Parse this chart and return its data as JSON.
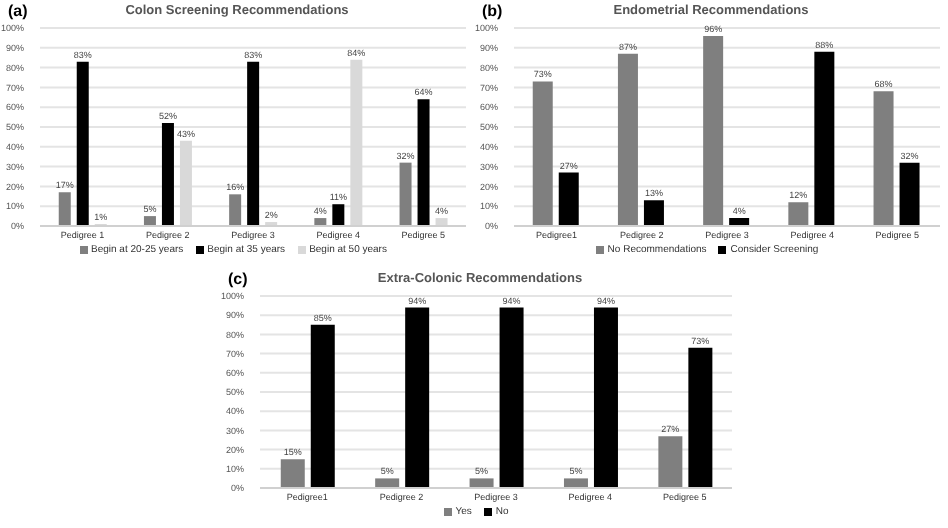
{
  "chart_data": [
    {
      "type": "bar",
      "title": "Colon Screening Recommendations",
      "annotations": [
        "(a)"
      ],
      "categories": [
        "Pedigree 1",
        "Pedigree 2",
        "Pedigree 3",
        "Pedigree 4",
        "Pedigree 5"
      ],
      "series": [
        {
          "name": "Begin at 20-25 years",
          "color": "#7f7f7f",
          "values": [
            17,
            5,
            16,
            4,
            32
          ],
          "value_labels": [
            "17%",
            "5%",
            "16%",
            "4%",
            "32%"
          ]
        },
        {
          "name": "Begin at 35 years",
          "color": "#000000",
          "values": [
            83,
            52,
            83,
            11,
            64
          ],
          "value_labels": [
            "83%",
            "52%",
            "83%",
            "11%",
            "64%"
          ]
        },
        {
          "name": "Begin at 50 years",
          "color": "#d9d9d9",
          "values": [
            1,
            43,
            2,
            84,
            4
          ],
          "value_labels": [
            "1%",
            "43%",
            "2%",
            "84%",
            "4%"
          ]
        }
      ],
      "ylim": [
        0,
        100
      ],
      "yticks": [
        {
          "value": 0,
          "label": "0%"
        },
        {
          "value": 10,
          "label": "10%"
        },
        {
          "value": 20,
          "label": "20%"
        },
        {
          "value": 30,
          "label": "30%"
        },
        {
          "value": 40,
          "label": "40%"
        },
        {
          "value": 50,
          "label": "50%"
        },
        {
          "value": 60,
          "label": "60%"
        },
        {
          "value": 70,
          "label": "70%"
        },
        {
          "value": 80,
          "label": "80%"
        },
        {
          "value": 90,
          "label": "90%"
        },
        {
          "value": 100,
          "label": "100%"
        }
      ],
      "grid": "y",
      "legend": "bottom"
    },
    {
      "type": "bar",
      "title": "Endometrial Recommendations",
      "annotations": [
        "(b)"
      ],
      "categories": [
        "Pedigree1",
        "Pedigree 2",
        "Pedigree 3",
        "Pedigree 4",
        "Pedigree 5"
      ],
      "series": [
        {
          "name": "No Recommendations",
          "color": "#7f7f7f",
          "values": [
            73,
            87,
            96,
            12,
            68
          ],
          "value_labels": [
            "73%",
            "87%",
            "96%",
            "12%",
            "68%"
          ]
        },
        {
          "name": "Consider Screening",
          "color": "#000000",
          "values": [
            27,
            13,
            4,
            88,
            32
          ],
          "value_labels": [
            "27%",
            "13%",
            "4%",
            "88%",
            "32%"
          ]
        }
      ],
      "ylim": [
        0,
        100
      ],
      "yticks": [
        {
          "value": 0,
          "label": "0%"
        },
        {
          "value": 10,
          "label": "10%"
        },
        {
          "value": 20,
          "label": "20%"
        },
        {
          "value": 30,
          "label": "30%"
        },
        {
          "value": 40,
          "label": "40%"
        },
        {
          "value": 50,
          "label": "50%"
        },
        {
          "value": 60,
          "label": "60%"
        },
        {
          "value": 70,
          "label": "70%"
        },
        {
          "value": 80,
          "label": "80%"
        },
        {
          "value": 90,
          "label": "90%"
        },
        {
          "value": 100,
          "label": "100%"
        }
      ],
      "grid": "y",
      "legend": "bottom"
    },
    {
      "type": "bar",
      "title": "Extra-Colonic Recommendations",
      "annotations": [
        "(c)"
      ],
      "categories": [
        "Pedigree1",
        "Pedigree 2",
        "Pedigree 3",
        "Pedigree 4",
        "Pedigree 5"
      ],
      "series": [
        {
          "name": "Yes",
          "color": "#7f7f7f",
          "values": [
            15,
            5,
            5,
            5,
            27
          ],
          "value_labels": [
            "15%",
            "5%",
            "5%",
            "5%",
            "27%"
          ]
        },
        {
          "name": "No",
          "color": "#000000",
          "values": [
            85,
            94,
            94,
            94,
            73
          ],
          "value_labels": [
            "85%",
            "94%",
            "94%",
            "94%",
            "73%"
          ]
        }
      ],
      "ylim": [
        0,
        100
      ],
      "yticks": [
        {
          "value": 0,
          "label": "0%"
        },
        {
          "value": 10,
          "label": "10%"
        },
        {
          "value": 20,
          "label": "20%"
        },
        {
          "value": 30,
          "label": "30%"
        },
        {
          "value": 40,
          "label": "40%"
        },
        {
          "value": 50,
          "label": "50%"
        },
        {
          "value": 60,
          "label": "60%"
        },
        {
          "value": 70,
          "label": "70%"
        },
        {
          "value": 80,
          "label": "80%"
        },
        {
          "value": 90,
          "label": "90%"
        },
        {
          "value": 100,
          "label": "100%"
        }
      ],
      "grid": "y",
      "legend": "bottom"
    }
  ]
}
